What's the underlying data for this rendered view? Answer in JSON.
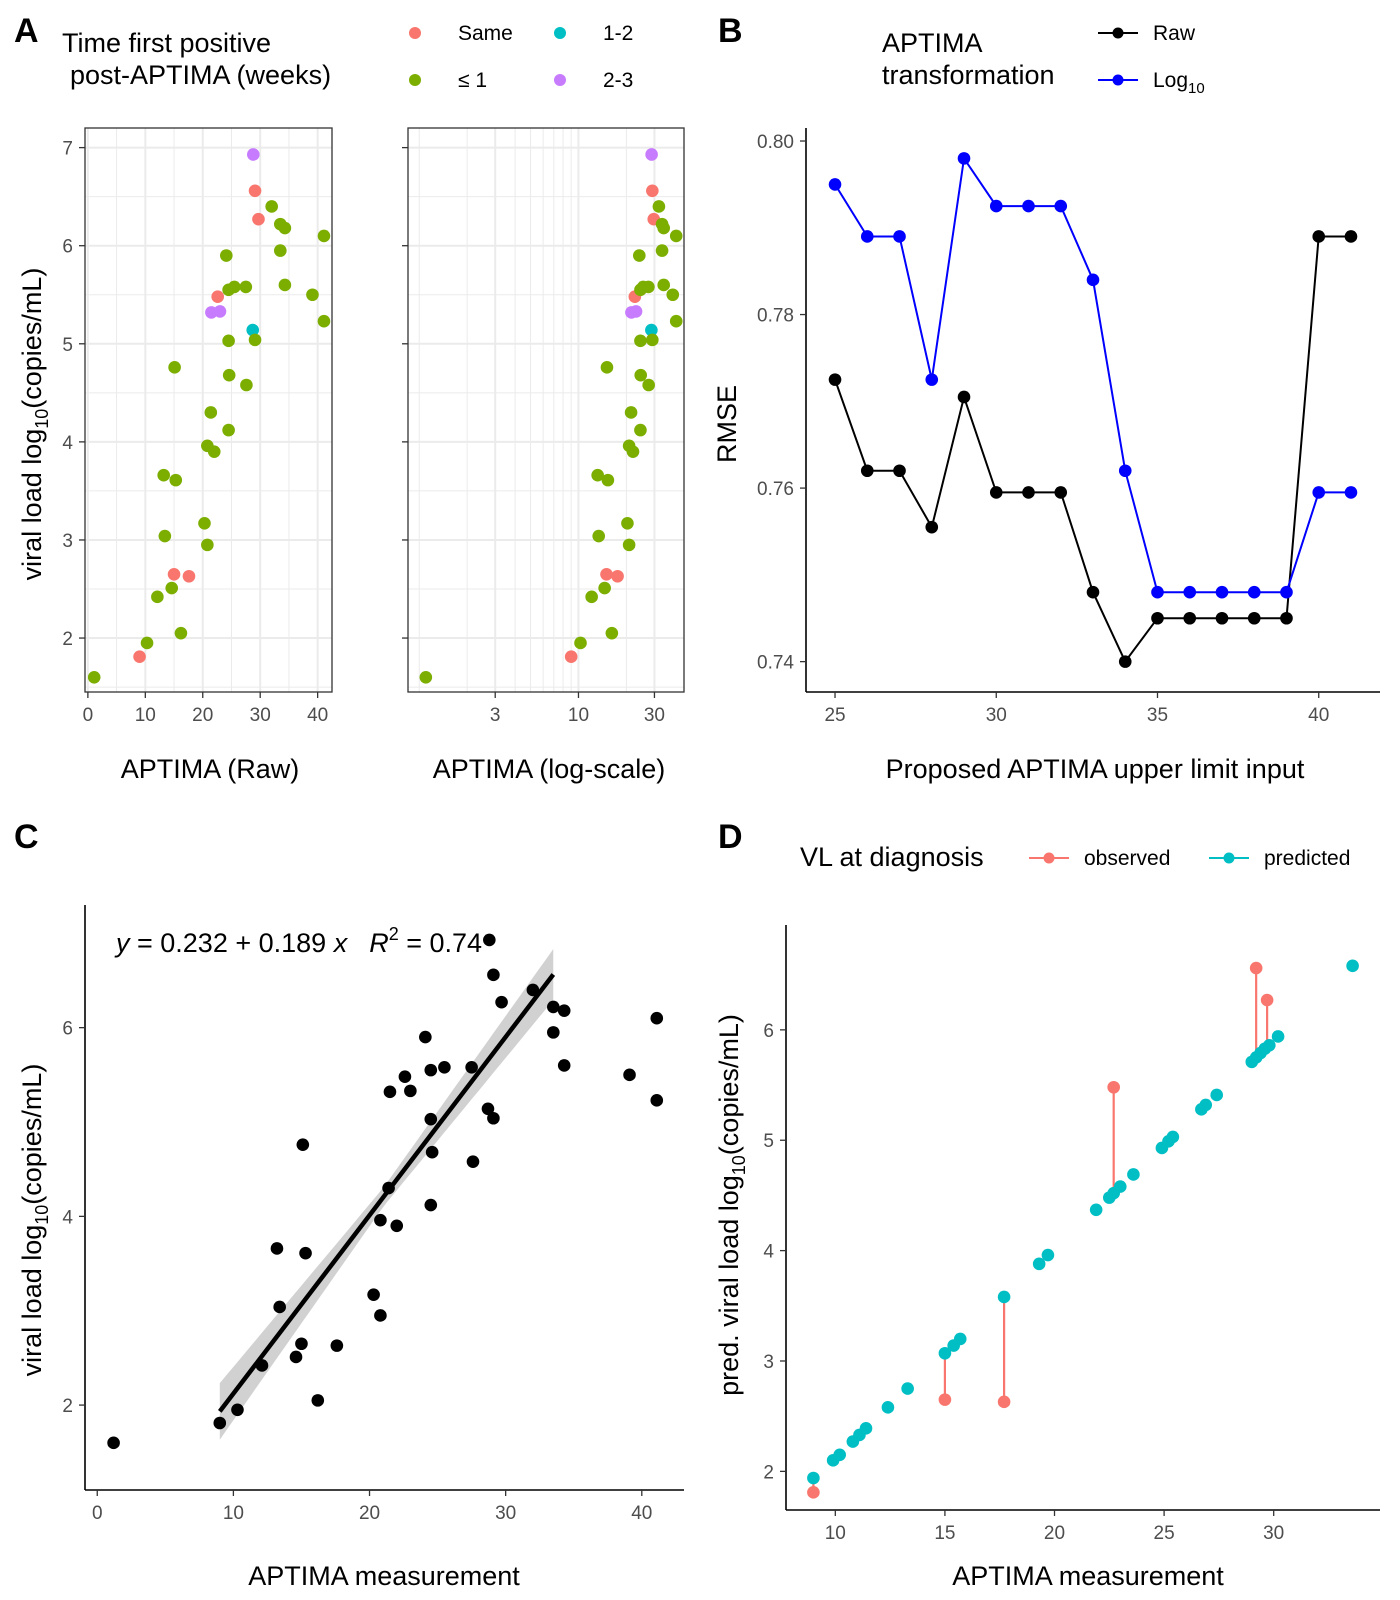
{
  "colors": {
    "Same": "#F8766D",
    "le1": "#7CAE00",
    "1-2": "#00BFC4",
    "2-3": "#C77CFF",
    "raw": "#000000",
    "log10": "#0000FF",
    "observed": "#F8766D",
    "predicted": "#00BFC4",
    "ribbon": "#BEBEBE",
    "grid": "#EBEBEB"
  },
  "chart_data": [
    {
      "panel": "A",
      "type": "scatter",
      "legend": {
        "title_line1": "Time first positive",
        "title_line2": "post-APTIMA (weeks)",
        "entries": [
          {
            "key": "Same",
            "label": "Same"
          },
          {
            "key": "1-2",
            "label": "1-2"
          },
          {
            "key": "le1",
            "label": "≤ 1"
          },
          {
            "key": "2-3",
            "label": "2-3"
          }
        ]
      },
      "ylabel_pre": "viral load log",
      "ylabel_sub": "10",
      "ylabel_post": "(copies/mL)",
      "ylim": [
        1.45,
        7.2
      ],
      "yticks": [
        2,
        3,
        4,
        5,
        6,
        7
      ],
      "subplots": [
        {
          "xlabel": "APTIMA (Raw)",
          "scale": "linear",
          "xlim": [
            -0.5,
            42.5
          ],
          "xticks": [
            0,
            10,
            20,
            30,
            40
          ]
        },
        {
          "xlabel": "APTIMA (log-scale)",
          "scale": "log",
          "xlim": [
            0.85,
            46
          ],
          "xticks": [
            3,
            10,
            30
          ]
        }
      ],
      "points": [
        {
          "x": 1.1,
          "y": 1.6,
          "g": "le1"
        },
        {
          "x": 9.0,
          "y": 1.81,
          "g": "Same"
        },
        {
          "x": 10.3,
          "y": 1.95,
          "g": "le1"
        },
        {
          "x": 12.1,
          "y": 2.42,
          "g": "le1"
        },
        {
          "x": 14.6,
          "y": 2.51,
          "g": "le1"
        },
        {
          "x": 15.0,
          "y": 2.65,
          "g": "Same"
        },
        {
          "x": 16.2,
          "y": 2.05,
          "g": "le1"
        },
        {
          "x": 17.6,
          "y": 2.63,
          "g": "Same"
        },
        {
          "x": 13.4,
          "y": 3.04,
          "g": "le1"
        },
        {
          "x": 13.2,
          "y": 3.66,
          "g": "le1"
        },
        {
          "x": 15.3,
          "y": 3.61,
          "g": "le1"
        },
        {
          "x": 15.1,
          "y": 4.76,
          "g": "le1"
        },
        {
          "x": 20.3,
          "y": 3.17,
          "g": "le1"
        },
        {
          "x": 20.8,
          "y": 2.95,
          "g": "le1"
        },
        {
          "x": 20.8,
          "y": 3.96,
          "g": "le1"
        },
        {
          "x": 21.4,
          "y": 4.3,
          "g": "le1"
        },
        {
          "x": 22.0,
          "y": 3.9,
          "g": "le1"
        },
        {
          "x": 24.5,
          "y": 4.12,
          "g": "le1"
        },
        {
          "x": 24.6,
          "y": 4.68,
          "g": "le1"
        },
        {
          "x": 21.5,
          "y": 5.32,
          "g": "2-3"
        },
        {
          "x": 23.0,
          "y": 5.33,
          "g": "2-3"
        },
        {
          "x": 22.6,
          "y": 5.48,
          "g": "Same"
        },
        {
          "x": 24.1,
          "y": 5.9,
          "g": "le1"
        },
        {
          "x": 24.5,
          "y": 5.55,
          "g": "le1"
        },
        {
          "x": 24.5,
          "y": 5.03,
          "g": "le1"
        },
        {
          "x": 25.5,
          "y": 5.58,
          "g": "le1"
        },
        {
          "x": 27.5,
          "y": 5.58,
          "g": "le1"
        },
        {
          "x": 27.6,
          "y": 4.58,
          "g": "le1"
        },
        {
          "x": 28.7,
          "y": 5.14,
          "g": "1-2"
        },
        {
          "x": 28.8,
          "y": 6.93,
          "g": "2-3"
        },
        {
          "x": 29.1,
          "y": 6.56,
          "g": "Same"
        },
        {
          "x": 29.7,
          "y": 6.27,
          "g": "Same"
        },
        {
          "x": 29.1,
          "y": 5.04,
          "g": "le1"
        },
        {
          "x": 32.0,
          "y": 6.4,
          "g": "le1"
        },
        {
          "x": 33.5,
          "y": 6.22,
          "g": "le1"
        },
        {
          "x": 34.3,
          "y": 6.18,
          "g": "le1"
        },
        {
          "x": 33.5,
          "y": 5.95,
          "g": "le1"
        },
        {
          "x": 34.3,
          "y": 5.6,
          "g": "le1"
        },
        {
          "x": 39.1,
          "y": 5.5,
          "g": "le1"
        },
        {
          "x": 41.1,
          "y": 6.1,
          "g": "le1"
        },
        {
          "x": 41.1,
          "y": 5.23,
          "g": "le1"
        }
      ]
    },
    {
      "panel": "B",
      "type": "line",
      "legend": {
        "title_line1": "APTIMA",
        "title_line2": "transformation",
        "entries": [
          {
            "key": "raw",
            "label": "Raw",
            "sub": ""
          },
          {
            "key": "log10",
            "label": "Log",
            "sub": "10"
          }
        ]
      },
      "xlabel": "Proposed APTIMA upper limit input",
      "ylabel": "RMSE",
      "xlim": [
        24.1,
        41.9
      ],
      "ylim": [
        0.7365,
        0.8015
      ],
      "xticks": [
        25,
        30,
        35,
        40
      ],
      "yticks": [
        0.74,
        0.76,
        0.78,
        0.8
      ],
      "ytick_labels": [
        "0.74",
        "0.76",
        "0.78",
        "0.80"
      ],
      "x": [
        25,
        26,
        27,
        28,
        29,
        30,
        31,
        32,
        33,
        34,
        35,
        36,
        37,
        38,
        39,
        40,
        41
      ],
      "series": [
        {
          "key": "raw",
          "name": "Raw",
          "values": [
            0.7725,
            0.762,
            0.762,
            0.7555,
            0.7705,
            0.7595,
            0.7595,
            0.7595,
            0.748,
            0.74,
            0.745,
            0.745,
            0.745,
            0.745,
            0.745,
            0.789,
            0.789
          ]
        },
        {
          "key": "log10",
          "name": "Log10",
          "values": [
            0.795,
            0.789,
            0.789,
            0.7725,
            0.798,
            0.7925,
            0.7925,
            0.7925,
            0.784,
            0.762,
            0.748,
            0.748,
            0.748,
            0.748,
            0.748,
            0.7595,
            0.7595
          ]
        }
      ]
    },
    {
      "panel": "C",
      "type": "scatter",
      "equation": {
        "y": "y",
        "rhs": " = 0.232 + 0.189 ",
        "x": "x",
        "r": "R",
        "r_sup": "2",
        "r_rhs": " = 0.74"
      },
      "xlabel": "APTIMA measurement",
      "ylabel_pre": "viral load log",
      "ylabel_sub": "10",
      "ylabel_post": "(copies/mL)",
      "xlim": [
        -0.9,
        43.1
      ],
      "ylim": [
        1.1,
        7.3
      ],
      "xticks": [
        0,
        10,
        20,
        30,
        40
      ],
      "yticks": [
        2,
        4,
        6
      ],
      "fit": {
        "intercept": 0.232,
        "slope": 0.189,
        "x_from": 9.0,
        "x_to": 33.5,
        "se_at": [
          {
            "x": 9.0,
            "se": 0.3
          },
          {
            "x": 21.0,
            "se": 0.1
          },
          {
            "x": 33.5,
            "se": 0.27
          }
        ]
      },
      "points": [
        {
          "x": 1.2,
          "y": 1.6
        },
        {
          "x": 9.0,
          "y": 1.81
        },
        {
          "x": 10.3,
          "y": 1.95
        },
        {
          "x": 12.1,
          "y": 2.42
        },
        {
          "x": 14.6,
          "y": 2.51
        },
        {
          "x": 15.0,
          "y": 2.65
        },
        {
          "x": 16.2,
          "y": 2.05
        },
        {
          "x": 17.6,
          "y": 2.63
        },
        {
          "x": 13.4,
          "y": 3.04
        },
        {
          "x": 13.2,
          "y": 3.66
        },
        {
          "x": 15.3,
          "y": 3.61
        },
        {
          "x": 15.1,
          "y": 4.76
        },
        {
          "x": 20.3,
          "y": 3.17
        },
        {
          "x": 20.8,
          "y": 2.95
        },
        {
          "x": 20.8,
          "y": 3.96
        },
        {
          "x": 21.4,
          "y": 4.3
        },
        {
          "x": 22.0,
          "y": 3.9
        },
        {
          "x": 24.5,
          "y": 4.12
        },
        {
          "x": 24.6,
          "y": 4.68
        },
        {
          "x": 21.5,
          "y": 5.32
        },
        {
          "x": 23.0,
          "y": 5.33
        },
        {
          "x": 22.6,
          "y": 5.48
        },
        {
          "x": 24.1,
          "y": 5.9
        },
        {
          "x": 24.5,
          "y": 5.55
        },
        {
          "x": 24.5,
          "y": 5.03
        },
        {
          "x": 25.5,
          "y": 5.58
        },
        {
          "x": 27.5,
          "y": 5.58
        },
        {
          "x": 27.6,
          "y": 4.58
        },
        {
          "x": 28.7,
          "y": 5.14
        },
        {
          "x": 28.8,
          "y": 6.93
        },
        {
          "x": 29.1,
          "y": 6.56
        },
        {
          "x": 29.7,
          "y": 6.27
        },
        {
          "x": 29.1,
          "y": 5.04
        },
        {
          "x": 32.0,
          "y": 6.4
        },
        {
          "x": 33.5,
          "y": 6.22
        },
        {
          "x": 34.3,
          "y": 6.18
        },
        {
          "x": 33.5,
          "y": 5.95
        },
        {
          "x": 34.3,
          "y": 5.6
        },
        {
          "x": 39.1,
          "y": 5.5
        },
        {
          "x": 41.1,
          "y": 6.1
        },
        {
          "x": 41.1,
          "y": 5.23
        }
      ]
    },
    {
      "panel": "D",
      "type": "scatter",
      "legend": {
        "title": "VL at diagnosis",
        "entries": [
          {
            "key": "observed",
            "label": "observed"
          },
          {
            "key": "predicted",
            "label": "predicted"
          }
        ]
      },
      "xlabel": "APTIMA measurement",
      "ylabel_pre": "pred. viral load log",
      "ylabel_sub": "10",
      "ylabel_post": "(copies/mL)",
      "xlim": [
        7.75,
        34.85
      ],
      "ylim": [
        1.65,
        6.95
      ],
      "xticks": [
        10,
        15,
        20,
        25,
        30
      ],
      "yticks": [
        2,
        3,
        4,
        5,
        6
      ],
      "predicted": [
        {
          "x": 9.0,
          "y": 1.94
        },
        {
          "x": 9.9,
          "y": 2.1
        },
        {
          "x": 10.2,
          "y": 2.15
        },
        {
          "x": 10.8,
          "y": 2.27
        },
        {
          "x": 11.1,
          "y": 2.33
        },
        {
          "x": 11.4,
          "y": 2.39
        },
        {
          "x": 12.4,
          "y": 2.58
        },
        {
          "x": 13.3,
          "y": 2.75
        },
        {
          "x": 15.0,
          "y": 3.07
        },
        {
          "x": 15.4,
          "y": 3.14
        },
        {
          "x": 15.7,
          "y": 3.2
        },
        {
          "x": 17.7,
          "y": 3.58
        },
        {
          "x": 19.3,
          "y": 3.88
        },
        {
          "x": 19.7,
          "y": 3.96
        },
        {
          "x": 21.9,
          "y": 4.37
        },
        {
          "x": 22.5,
          "y": 4.48
        },
        {
          "x": 22.7,
          "y": 4.52
        },
        {
          "x": 23.0,
          "y": 4.58
        },
        {
          "x": 23.6,
          "y": 4.69
        },
        {
          "x": 24.9,
          "y": 4.93
        },
        {
          "x": 25.2,
          "y": 4.99
        },
        {
          "x": 25.4,
          "y": 5.03
        },
        {
          "x": 26.7,
          "y": 5.28
        },
        {
          "x": 26.9,
          "y": 5.32
        },
        {
          "x": 27.4,
          "y": 5.41
        },
        {
          "x": 29.0,
          "y": 5.71
        },
        {
          "x": 29.2,
          "y": 5.75
        },
        {
          "x": 29.4,
          "y": 5.79
        },
        {
          "x": 29.6,
          "y": 5.83
        },
        {
          "x": 29.8,
          "y": 5.86
        },
        {
          "x": 30.2,
          "y": 5.94
        },
        {
          "x": 33.6,
          "y": 6.58
        }
      ],
      "observed": [
        {
          "x": 9.0,
          "y": 1.81,
          "pred": 1.94
        },
        {
          "x": 15.0,
          "y": 2.65,
          "pred": 3.07
        },
        {
          "x": 17.7,
          "y": 2.63,
          "pred": 3.58
        },
        {
          "x": 22.7,
          "y": 5.48,
          "pred": 4.52
        },
        {
          "x": 29.2,
          "y": 6.56,
          "pred": 5.75
        },
        {
          "x": 29.7,
          "y": 6.27,
          "pred": 5.85
        }
      ]
    }
  ],
  "panels": {
    "A": "A",
    "B": "B",
    "C": "C",
    "D": "D"
  }
}
